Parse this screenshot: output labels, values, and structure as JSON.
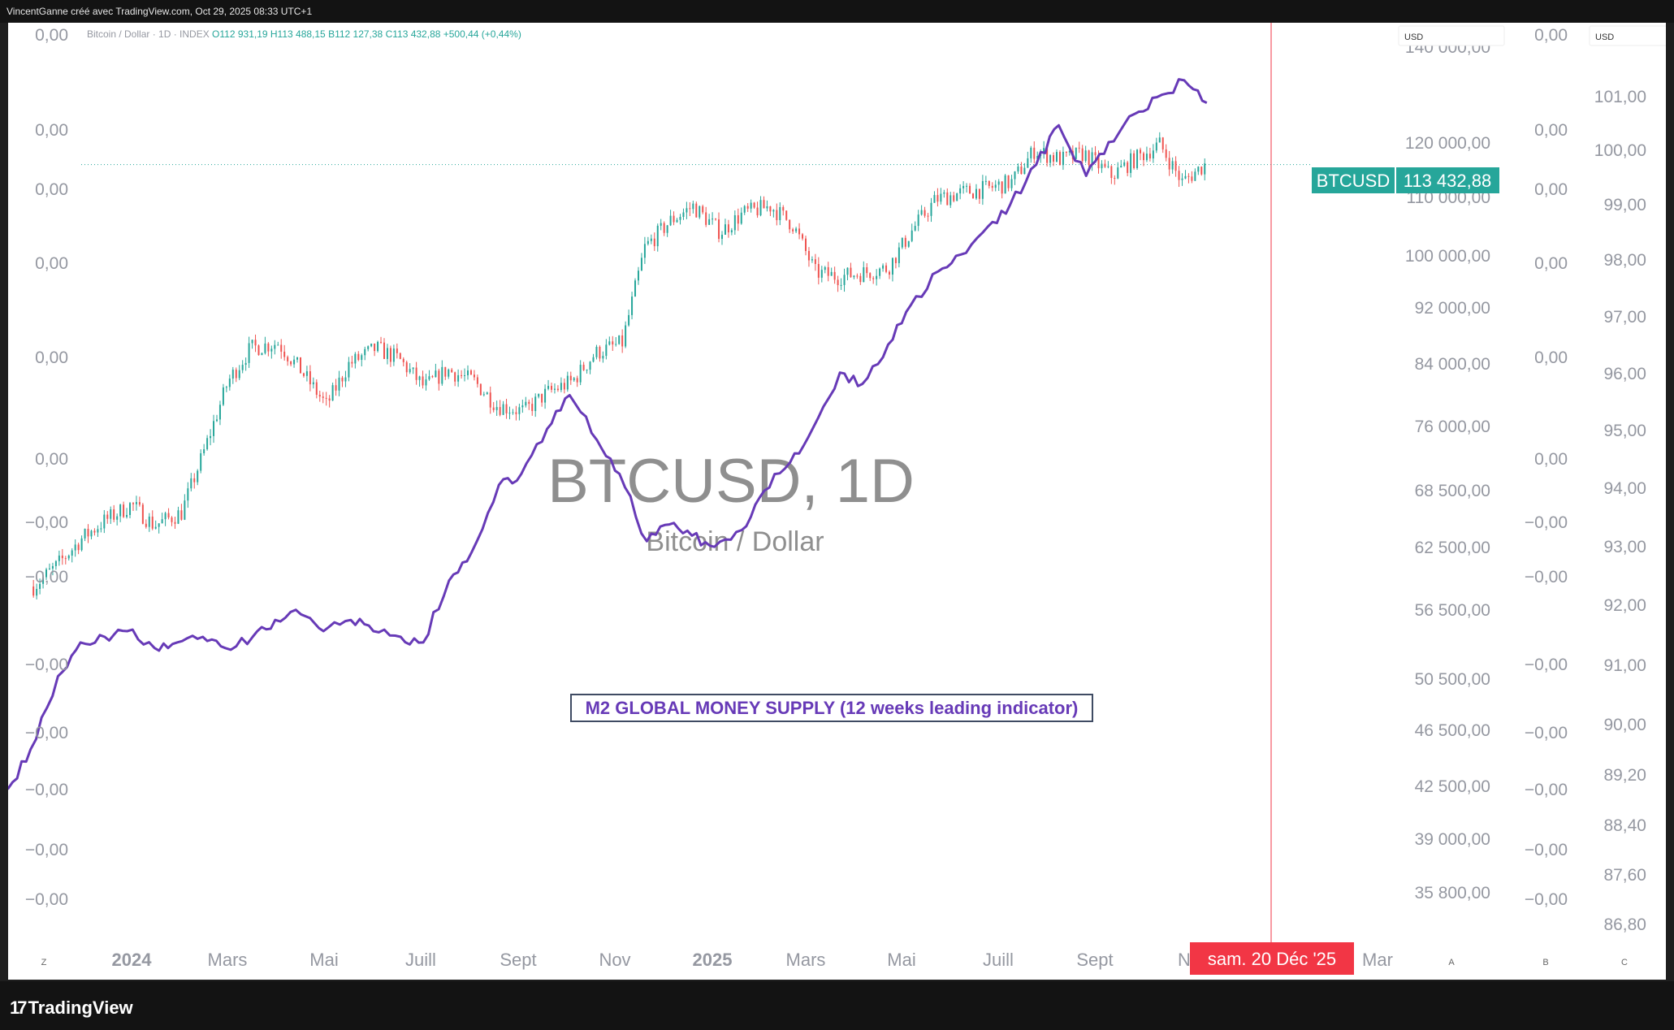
{
  "header": {
    "credit": "VincentGanne créé avec TradingView.com, Oct 29, 2025 08:33 UTC+1"
  },
  "footer": {
    "brand": "TradingView"
  },
  "legend": {
    "symbol": "Bitcoin / Dollar · 1D · INDEX",
    "o": "O112 931,19",
    "h": "H113 488,15",
    "b": "B112 127,38",
    "c": "C113 432,88",
    "change": "+500,44 (+0,44%)"
  },
  "watermark": {
    "title": "BTCUSD, 1D",
    "subtitle": "Bitcoin / Dollar"
  },
  "annotation": {
    "text": "M2 GLOBAL MONEY SUPPLY (12 weeks leading indicator)"
  },
  "price_tag": {
    "symbol": "BTCUSD",
    "price": "113 432,88"
  },
  "crosshair": {
    "date_label": "sam. 20 Déc '25"
  },
  "currency_boxes": [
    "USD",
    "USD"
  ],
  "corner_letters": {
    "left": "Z",
    "a": "A",
    "b": "B",
    "c": "C"
  },
  "colors": {
    "candle_up": "#26a69a",
    "candle_down": "#ef5350",
    "m2_line": "#673ab7",
    "price_tag_bg": "#26a69a",
    "crosshair": "#f23645",
    "watermark": "#8f8f8f",
    "axis_text": "#9598a1"
  },
  "chart_data": {
    "type": "line",
    "series": [
      {
        "kind": "candlestick",
        "x": [
          "2023-11-01",
          "2023-11-15",
          "2023-12-01",
          "2023-12-15",
          "2024-01-01",
          "2024-01-15",
          "2024-02-01",
          "2024-02-15",
          "2024-03-01",
          "2024-03-15",
          "2024-04-01",
          "2024-04-15",
          "2024-05-01",
          "2024-05-15",
          "2024-06-01",
          "2024-06-15",
          "2024-07-01",
          "2024-07-15",
          "2024-08-01",
          "2024-08-15",
          "2024-09-01",
          "2024-09-15",
          "2024-10-01",
          "2024-10-15",
          "2024-11-01",
          "2024-11-15",
          "2024-12-01",
          "2024-12-15",
          "2025-01-01",
          "2025-01-15",
          "2025-02-01",
          "2025-02-15",
          "2025-03-01",
          "2025-03-15",
          "2025-04-01",
          "2025-04-15",
          "2025-05-01",
          "2025-05-15",
          "2025-06-01",
          "2025-06-15",
          "2025-07-01",
          "2025-07-15",
          "2025-08-01",
          "2025-08-15",
          "2025-09-01",
          "2025-09-15",
          "2025-10-01",
          "2025-10-15",
          "2025-10-29"
        ],
        "close": [
          35000,
          37000,
          40000,
          42000,
          44000,
          41500,
          43000,
          51000,
          62000,
          68000,
          69000,
          64000,
          58000,
          65000,
          68000,
          66000,
          61000,
          64000,
          62000,
          58000,
          57000,
          60000,
          62000,
          67000,
          69000,
          90000,
          97000,
          101000,
          94000,
          99000,
          101000,
          96000,
          84000,
          83000,
          84000,
          85000,
          95000,
          103000,
          105000,
          106000,
          108000,
          118000,
          115000,
          117000,
          110000,
          115000,
          120000,
          108000,
          113432.88
        ]
      }
    ],
    "m2_series": {
      "name": "M2 GLOBAL MONEY SUPPLY (12 weeks leading indicator)",
      "x": [
        "2023-11-01",
        "2023-11-15",
        "2023-12-01",
        "2023-12-15",
        "2024-01-01",
        "2024-01-15",
        "2024-02-01",
        "2024-02-15",
        "2024-03-01",
        "2024-03-15",
        "2024-04-01",
        "2024-04-15",
        "2024-05-01",
        "2024-05-15",
        "2024-06-01",
        "2024-06-15",
        "2024-07-01",
        "2024-07-15",
        "2024-08-01",
        "2024-08-15",
        "2024-09-01",
        "2024-09-15",
        "2024-10-01",
        "2024-10-15",
        "2024-11-01",
        "2024-11-15",
        "2024-12-01",
        "2024-12-15",
        "2025-01-01",
        "2025-01-15",
        "2025-02-01",
        "2025-02-15",
        "2025-03-01",
        "2025-03-15",
        "2025-04-01",
        "2025-04-15",
        "2025-05-01",
        "2025-05-15",
        "2025-06-01",
        "2025-06-15",
        "2025-07-01",
        "2025-07-15",
        "2025-08-01",
        "2025-08-15",
        "2025-09-01",
        "2025-09-15",
        "2025-10-01",
        "2025-10-15",
        "2025-11-01",
        "2025-11-15",
        "2025-12-01",
        "2025-12-15",
        "2026-01-01",
        "2026-01-15"
      ],
      "values": [
        88.5,
        88.0,
        88.2,
        88.1,
        87.8,
        88.5,
        89.8,
        90.4,
        90.5,
        90.6,
        90.3,
        90.4,
        90.5,
        90.3,
        90.5,
        90.8,
        90.9,
        90.6,
        90.8,
        90.6,
        90.5,
        90.4,
        91.5,
        92.0,
        93.2,
        93.4,
        94.2,
        94.8,
        94.0,
        93.4,
        92.2,
        92.5,
        92.3,
        92.1,
        92.4,
        93.1,
        93.6,
        94.2,
        95.2,
        95.0,
        95.7,
        96.4,
        97.0,
        97.3,
        97.8,
        98.2,
        98.9,
        99.6,
        98.7,
        99.3,
        99.8,
        100.1,
        100.4,
        100.0
      ]
    },
    "x_ticks": [
      "2024",
      "Mars",
      "Mai",
      "Juill",
      "Sept",
      "Nov",
      "2025",
      "Mars",
      "Mai",
      "Juill",
      "Sept",
      "N",
      "Mar"
    ],
    "price_axis": {
      "ticks": [
        "140 000,00",
        "120 000,00",
        "110 000,00",
        "100 000,00",
        "92 000,00",
        "84 000,00",
        "76 000,00",
        "68 500,00",
        "62 500,00",
        "56 500,00",
        "50 500,00",
        "46 500,00",
        "42 500,00",
        "39 000,00",
        "35 800,00"
      ],
      "scale": "log"
    },
    "m2_axis": {
      "ticks": [
        "101,00",
        "100,00",
        "99,00",
        "98,00",
        "97,00",
        "96,00",
        "95,00",
        "94,00",
        "93,00",
        "92,00",
        "91,00",
        "90,00",
        "89,20",
        "88,40",
        "87,60",
        "86,80"
      ]
    },
    "zero_axis_left": {
      "ticks": [
        "0,00",
        "0,00",
        "0,00",
        "0,00",
        "0,00",
        "0,00",
        "−0,00",
        "−0,00",
        "−0,00",
        "−0,00",
        "−0,00",
        "−0,00",
        "−0,00"
      ]
    },
    "zero_axis_right": {
      "ticks": [
        "0,00",
        "0,00",
        "0,00",
        "0,00",
        "0,00",
        "0,00",
        "−0,00",
        "−0,00",
        "−0,00",
        "−0,00",
        "−0,00",
        "−0,00",
        "−0,00"
      ]
    },
    "grid": false
  }
}
